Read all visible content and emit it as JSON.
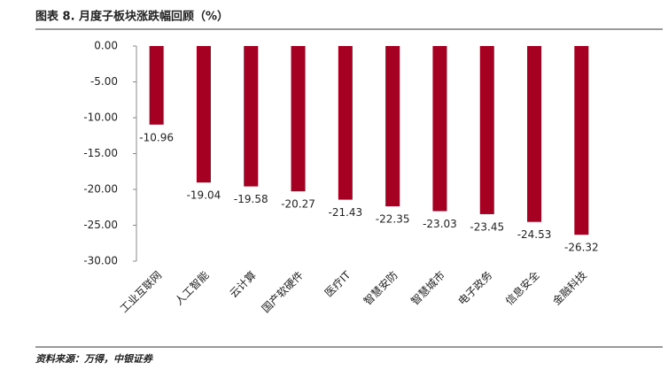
{
  "chart_data": {
    "type": "bar",
    "title": "图表 8. 月度子板块涨跌幅回顾（%）",
    "source": "资料来源：万得，中银证券",
    "categories": [
      "工业互联网",
      "人工智能",
      "云计算",
      "国产软硬件",
      "医疗IT",
      "智慧安防",
      "智慧城市",
      "电子政务",
      "信息安全",
      "金融科技"
    ],
    "values": [
      -10.96,
      -19.04,
      -19.58,
      -20.27,
      -21.43,
      -22.35,
      -23.03,
      -23.45,
      -24.53,
      -26.32
    ],
    "color": "#a50021",
    "ylim": [
      -30,
      0
    ],
    "yticks": [
      {
        "value": 0,
        "label": "0.00"
      },
      {
        "value": -5,
        "label": "-5.00"
      },
      {
        "value": -10,
        "label": "-10.00"
      },
      {
        "value": -15,
        "label": "-15.00"
      },
      {
        "value": -20,
        "label": "-20.00"
      },
      {
        "value": -25,
        "label": "-25.00"
      },
      {
        "value": -30,
        "label": "-30.00"
      }
    ],
    "grid": false
  }
}
